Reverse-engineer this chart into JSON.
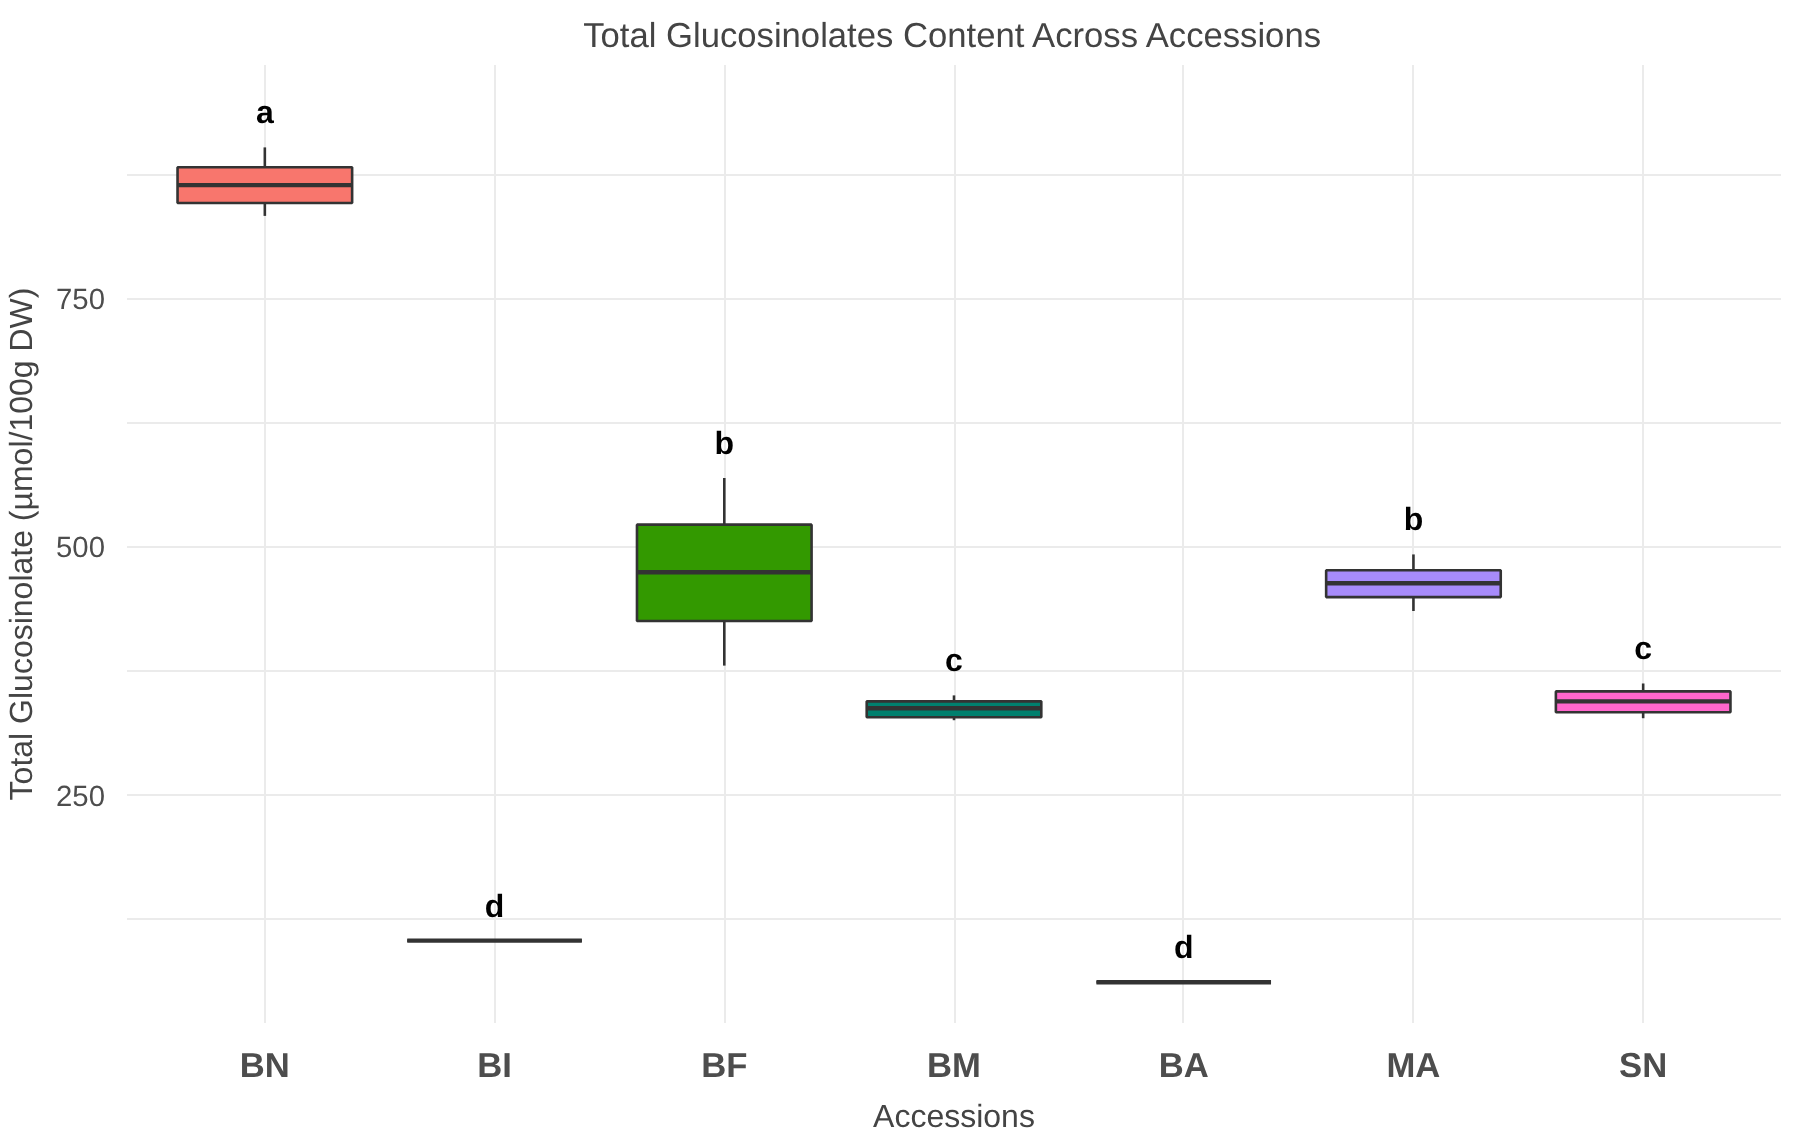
{
  "chart_data": {
    "type": "box",
    "title": "Total Glucosinolates Content Across Accessions",
    "xlabel": "Accessions",
    "ylabel": "Total Glucosinolate (µmol/100g DW)",
    "categories": [
      "BN",
      "BI",
      "BF",
      "BM",
      "BA",
      "MA",
      "SN"
    ],
    "colors": [
      "#f8766d",
      "#333333",
      "#339900",
      "#00806e",
      "#333333",
      "#a78bfa",
      "#ff66cc"
    ],
    "boxes": [
      {
        "low": 833,
        "q1": 846,
        "median": 864,
        "q3": 882,
        "high": 902
      },
      {
        "low": 103,
        "q1": 103,
        "median": 103,
        "q3": 103,
        "high": 103
      },
      {
        "low": 380,
        "q1": 425,
        "median": 474,
        "q3": 522,
        "high": 569
      },
      {
        "low": 325,
        "q1": 328,
        "median": 337,
        "q3": 344,
        "high": 350
      },
      {
        "low": 61,
        "q1": 61,
        "median": 61,
        "q3": 61,
        "high": 61
      },
      {
        "low": 435,
        "q1": 449,
        "median": 463,
        "q3": 476,
        "high": 492
      },
      {
        "low": 327,
        "q1": 333,
        "median": 344,
        "q3": 354,
        "high": 362
      }
    ],
    "annotations": [
      "a",
      "d",
      "b",
      "c",
      "d",
      "b",
      "c"
    ],
    "ylim": [
      20,
      985
    ],
    "yticks": [
      {
        "value": 125,
        "label": null
      },
      250,
      {
        "value": 375,
        "label": null
      },
      500,
      {
        "value": 625,
        "label": null
      },
      750,
      {
        "value": 875,
        "label": null
      }
    ],
    "grid": true
  }
}
